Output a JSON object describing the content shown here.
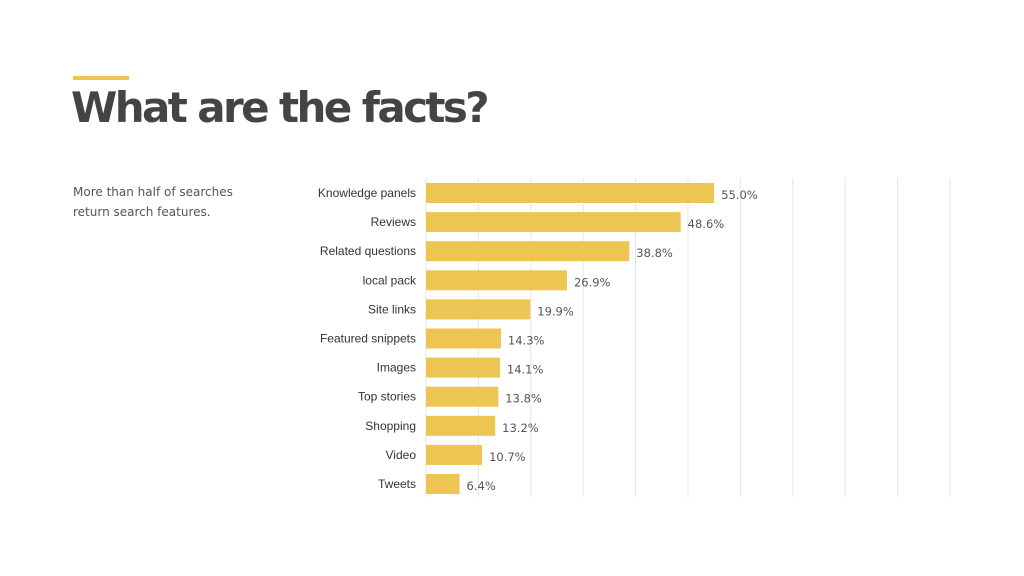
{
  "page": {
    "title": "What are the facts?",
    "subtitle": "More than half of searches return search features.",
    "colors": {
      "accent": "#ECC552",
      "title": "#444444",
      "text": "#555555",
      "bar": "#ECC552",
      "grid": "#E6E6E6"
    }
  },
  "chart_data": {
    "type": "bar",
    "orientation": "horizontal",
    "categories": [
      "Knowledge panels",
      "Reviews",
      "Related questions",
      "local pack",
      "Site links",
      "Featured snippets",
      "Images",
      "Top stories",
      "Shopping",
      "Video",
      "Tweets"
    ],
    "values": [
      55.0,
      48.6,
      38.8,
      26.9,
      19.9,
      14.3,
      14.1,
      13.8,
      13.2,
      10.7,
      6.4
    ],
    "data_labels": [
      "55.0%",
      "48.6%",
      "38.8%",
      "26.9%",
      "19.9%",
      "14.3%",
      "14.1%",
      "13.8%",
      "13.2%",
      "10.7%",
      "6.4%"
    ],
    "xlim": [
      0,
      100
    ],
    "grid": true,
    "title": "",
    "xlabel": "",
    "ylabel": ""
  }
}
